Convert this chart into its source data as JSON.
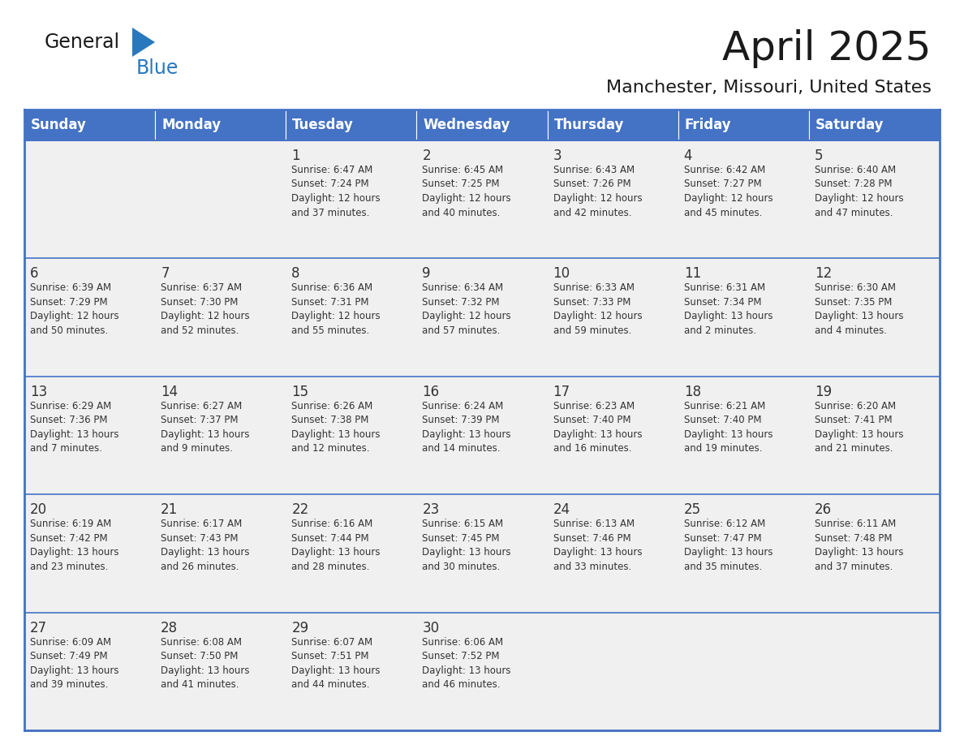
{
  "title": "April 2025",
  "subtitle": "Manchester, Missouri, United States",
  "header_color": "#4472C4",
  "header_text_color": "#FFFFFF",
  "cell_bg_color": "#F0F0F0",
  "text_color": "#333333",
  "border_color": "#4472C4",
  "days_of_week": [
    "Sunday",
    "Monday",
    "Tuesday",
    "Wednesday",
    "Thursday",
    "Friday",
    "Saturday"
  ],
  "weeks": [
    [
      {
        "day": "",
        "info": ""
      },
      {
        "day": "",
        "info": ""
      },
      {
        "day": "1",
        "info": "Sunrise: 6:47 AM\nSunset: 7:24 PM\nDaylight: 12 hours\nand 37 minutes."
      },
      {
        "day": "2",
        "info": "Sunrise: 6:45 AM\nSunset: 7:25 PM\nDaylight: 12 hours\nand 40 minutes."
      },
      {
        "day": "3",
        "info": "Sunrise: 6:43 AM\nSunset: 7:26 PM\nDaylight: 12 hours\nand 42 minutes."
      },
      {
        "day": "4",
        "info": "Sunrise: 6:42 AM\nSunset: 7:27 PM\nDaylight: 12 hours\nand 45 minutes."
      },
      {
        "day": "5",
        "info": "Sunrise: 6:40 AM\nSunset: 7:28 PM\nDaylight: 12 hours\nand 47 minutes."
      }
    ],
    [
      {
        "day": "6",
        "info": "Sunrise: 6:39 AM\nSunset: 7:29 PM\nDaylight: 12 hours\nand 50 minutes."
      },
      {
        "day": "7",
        "info": "Sunrise: 6:37 AM\nSunset: 7:30 PM\nDaylight: 12 hours\nand 52 minutes."
      },
      {
        "day": "8",
        "info": "Sunrise: 6:36 AM\nSunset: 7:31 PM\nDaylight: 12 hours\nand 55 minutes."
      },
      {
        "day": "9",
        "info": "Sunrise: 6:34 AM\nSunset: 7:32 PM\nDaylight: 12 hours\nand 57 minutes."
      },
      {
        "day": "10",
        "info": "Sunrise: 6:33 AM\nSunset: 7:33 PM\nDaylight: 12 hours\nand 59 minutes."
      },
      {
        "day": "11",
        "info": "Sunrise: 6:31 AM\nSunset: 7:34 PM\nDaylight: 13 hours\nand 2 minutes."
      },
      {
        "day": "12",
        "info": "Sunrise: 6:30 AM\nSunset: 7:35 PM\nDaylight: 13 hours\nand 4 minutes."
      }
    ],
    [
      {
        "day": "13",
        "info": "Sunrise: 6:29 AM\nSunset: 7:36 PM\nDaylight: 13 hours\nand 7 minutes."
      },
      {
        "day": "14",
        "info": "Sunrise: 6:27 AM\nSunset: 7:37 PM\nDaylight: 13 hours\nand 9 minutes."
      },
      {
        "day": "15",
        "info": "Sunrise: 6:26 AM\nSunset: 7:38 PM\nDaylight: 13 hours\nand 12 minutes."
      },
      {
        "day": "16",
        "info": "Sunrise: 6:24 AM\nSunset: 7:39 PM\nDaylight: 13 hours\nand 14 minutes."
      },
      {
        "day": "17",
        "info": "Sunrise: 6:23 AM\nSunset: 7:40 PM\nDaylight: 13 hours\nand 16 minutes."
      },
      {
        "day": "18",
        "info": "Sunrise: 6:21 AM\nSunset: 7:40 PM\nDaylight: 13 hours\nand 19 minutes."
      },
      {
        "day": "19",
        "info": "Sunrise: 6:20 AM\nSunset: 7:41 PM\nDaylight: 13 hours\nand 21 minutes."
      }
    ],
    [
      {
        "day": "20",
        "info": "Sunrise: 6:19 AM\nSunset: 7:42 PM\nDaylight: 13 hours\nand 23 minutes."
      },
      {
        "day": "21",
        "info": "Sunrise: 6:17 AM\nSunset: 7:43 PM\nDaylight: 13 hours\nand 26 minutes."
      },
      {
        "day": "22",
        "info": "Sunrise: 6:16 AM\nSunset: 7:44 PM\nDaylight: 13 hours\nand 28 minutes."
      },
      {
        "day": "23",
        "info": "Sunrise: 6:15 AM\nSunset: 7:45 PM\nDaylight: 13 hours\nand 30 minutes."
      },
      {
        "day": "24",
        "info": "Sunrise: 6:13 AM\nSunset: 7:46 PM\nDaylight: 13 hours\nand 33 minutes."
      },
      {
        "day": "25",
        "info": "Sunrise: 6:12 AM\nSunset: 7:47 PM\nDaylight: 13 hours\nand 35 minutes."
      },
      {
        "day": "26",
        "info": "Sunrise: 6:11 AM\nSunset: 7:48 PM\nDaylight: 13 hours\nand 37 minutes."
      }
    ],
    [
      {
        "day": "27",
        "info": "Sunrise: 6:09 AM\nSunset: 7:49 PM\nDaylight: 13 hours\nand 39 minutes."
      },
      {
        "day": "28",
        "info": "Sunrise: 6:08 AM\nSunset: 7:50 PM\nDaylight: 13 hours\nand 41 minutes."
      },
      {
        "day": "29",
        "info": "Sunrise: 6:07 AM\nSunset: 7:51 PM\nDaylight: 13 hours\nand 44 minutes."
      },
      {
        "day": "30",
        "info": "Sunrise: 6:06 AM\nSunset: 7:52 PM\nDaylight: 13 hours\nand 46 minutes."
      },
      {
        "day": "",
        "info": ""
      },
      {
        "day": "",
        "info": ""
      },
      {
        "day": "",
        "info": ""
      }
    ]
  ],
  "logo_general_color": "#1a1a1a",
  "logo_blue_color": "#2878BE",
  "logo_triangle_color": "#2878BE",
  "title_fontsize": 36,
  "subtitle_fontsize": 16,
  "header_fontsize": 12,
  "day_num_fontsize": 12,
  "info_fontsize": 8.5
}
